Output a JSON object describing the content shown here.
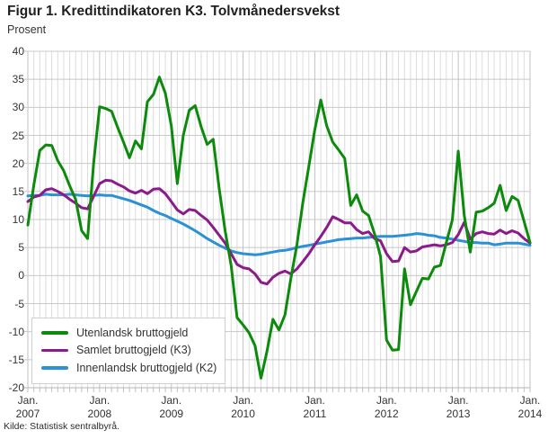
{
  "title": "Figur 1. Kredittindikatoren K3. Tolvmånedersvekst",
  "subtitle": "Prosent",
  "source": "Kilde: Statistisk sentralbyrå.",
  "chart_data": {
    "type": "line",
    "title": "Figur 1. Kredittindikatoren K3. Tolvmånedersvekst",
    "ylabel": "Prosent",
    "ylim": [
      -20,
      40
    ],
    "y_ticks": [
      40,
      35,
      30,
      25,
      20,
      15,
      10,
      5,
      0,
      -5,
      -10,
      -15,
      -20
    ],
    "grid": true,
    "legend_position": "inside-bottom-left",
    "x_start": "Jan 2007",
    "x_end": "Jan 2014",
    "x_frequency": "monthly",
    "x_tick_labels": [
      {
        "line1": "Jan.",
        "line2": "2007"
      },
      {
        "line1": "Jan.",
        "line2": "2008"
      },
      {
        "line1": "Jan.",
        "line2": "2009"
      },
      {
        "line1": "Jan.",
        "line2": "2010"
      },
      {
        "line1": "Jan.",
        "line2": "2011"
      },
      {
        "line1": "Jan.",
        "line2": "2012"
      },
      {
        "line1": "Jan.",
        "line2": "2013"
      },
      {
        "line1": "Jan.",
        "line2": "2014"
      }
    ],
    "series": [
      {
        "name": "Utenlandsk bruttogjeld",
        "color": "#0c8a0c",
        "values": [
          9.0,
          16.2,
          22.3,
          23.3,
          23.2,
          20.5,
          18.7,
          16.0,
          13.6,
          8.0,
          6.6,
          20.0,
          30.1,
          29.8,
          29.3,
          26.5,
          23.8,
          21.0,
          24.0,
          22.6,
          31.0,
          32.3,
          35.4,
          32.5,
          26.7,
          16.4,
          25.0,
          29.5,
          30.3,
          26.5,
          23.4,
          24.3,
          15.5,
          8.0,
          1.8,
          -7.5,
          -8.8,
          -10.2,
          -12.5,
          -18.3,
          -13.5,
          -7.8,
          -9.7,
          -7.0,
          -0.5,
          5.5,
          13.0,
          19.5,
          26.0,
          31.3,
          26.7,
          23.8,
          22.4,
          20.9,
          12.5,
          14.4,
          11.5,
          10.7,
          7.4,
          3.4,
          -11.5,
          -13.3,
          -13.2,
          1.2,
          -5.2,
          -2.8,
          -0.5,
          -0.6,
          1.5,
          1.8,
          5.9,
          9.9,
          22.2,
          10.7,
          4.2,
          11.3,
          11.5,
          12.1,
          12.9,
          16.1,
          11.6,
          14.1,
          13.4,
          9.7,
          5.9
        ]
      },
      {
        "name": "Samlet bruttogjeld (K3)",
        "color": "#8b1a8b",
        "values": [
          13.2,
          14.0,
          14.3,
          15.3,
          15.5,
          15.0,
          14.4,
          13.6,
          12.9,
          12.1,
          11.9,
          14.1,
          16.4,
          17.0,
          16.9,
          16.3,
          15.8,
          15.1,
          14.7,
          15.2,
          14.6,
          15.4,
          15.5,
          14.6,
          13.2,
          11.7,
          11.0,
          11.8,
          11.6,
          10.7,
          9.9,
          8.6,
          7.2,
          5.8,
          3.9,
          2.0,
          1.4,
          1.2,
          0.3,
          -1.2,
          -1.5,
          -0.3,
          0.4,
          0.8,
          0.3,
          1.2,
          2.5,
          3.9,
          5.5,
          7.0,
          8.6,
          10.5,
          10.0,
          9.4,
          9.4,
          8.2,
          7.5,
          7.8,
          6.6,
          6.2,
          3.9,
          2.5,
          2.6,
          5.0,
          4.2,
          4.4,
          5.1,
          5.3,
          5.5,
          5.3,
          5.5,
          5.9,
          7.3,
          9.5,
          6.5,
          7.5,
          7.8,
          7.5,
          7.4,
          8.1,
          7.5,
          8.0,
          7.6,
          6.6,
          5.8
        ]
      },
      {
        "name": "Innenlandsk bruttogjeld (K2)",
        "color": "#2b90d5",
        "values": [
          14.2,
          14.3,
          14.3,
          14.5,
          14.4,
          14.4,
          14.4,
          14.5,
          14.4,
          14.3,
          14.2,
          14.3,
          14.4,
          14.3,
          14.3,
          14.0,
          13.7,
          13.4,
          13.0,
          12.6,
          12.2,
          11.6,
          11.1,
          10.7,
          10.2,
          9.7,
          9.2,
          8.6,
          8.0,
          7.3,
          6.6,
          6.0,
          5.4,
          4.9,
          4.4,
          4.1,
          3.9,
          3.8,
          3.7,
          3.8,
          4.0,
          4.2,
          4.4,
          4.5,
          4.7,
          5.0,
          5.2,
          5.4,
          5.6,
          5.8,
          6.0,
          6.2,
          6.4,
          6.5,
          6.6,
          6.7,
          6.7,
          6.8,
          6.9,
          7.0,
          7.0,
          7.0,
          7.1,
          7.2,
          7.3,
          7.5,
          7.4,
          7.2,
          7.1,
          6.8,
          6.7,
          6.5,
          6.3,
          6.1,
          5.9,
          5.9,
          5.8,
          5.8,
          5.5,
          5.6,
          5.8,
          5.8,
          5.8,
          5.6,
          5.4
        ]
      }
    ]
  }
}
